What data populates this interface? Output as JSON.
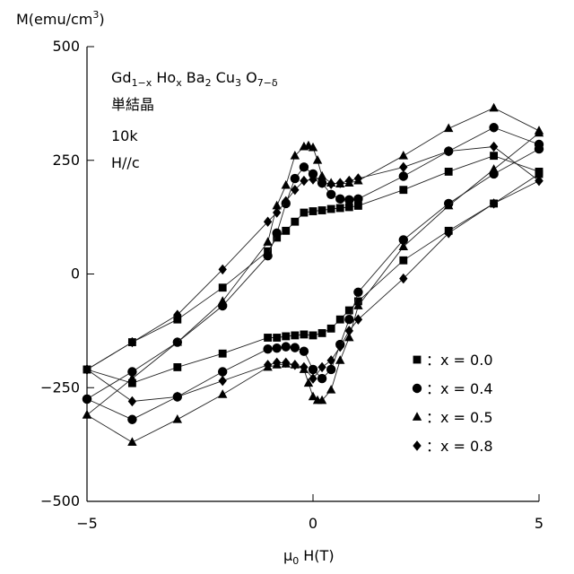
{
  "chart_data": {
    "type": "scatter",
    "ylabel_base": "M(emu/cm",
    "ylabel_sup": "3",
    "ylabel_end": ")",
    "xlabel_main": "μ",
    "xlabel_sub": "0",
    "xlabel_rest": " H(T)",
    "xlim": [
      -5,
      5
    ],
    "ylim": [
      -500,
      500
    ],
    "x_ticks": [
      -5,
      0,
      5
    ],
    "x_tick_labels": [
      "−5",
      "0",
      "5"
    ],
    "y_ticks": [
      -500,
      -250,
      0,
      250,
      500
    ],
    "y_tick_labels": [
      "−500",
      "−250",
      "0",
      "250",
      "500"
    ],
    "annotation": {
      "formula_parts": [
        {
          "t": "Gd",
          "sub": false
        },
        {
          "t": "1−x",
          "sub": true
        },
        {
          "t": " Ho",
          "sub": false
        },
        {
          "t": "x",
          "sub": true
        },
        {
          "t": " Ba",
          "sub": false
        },
        {
          "t": "2",
          "sub": true
        },
        {
          "t": " Cu",
          "sub": false
        },
        {
          "t": "3",
          "sub": true
        },
        {
          "t": " O",
          "sub": false
        },
        {
          "t": "7−δ",
          "sub": true
        }
      ],
      "line2": "単結晶",
      "line3": "10k",
      "line4": "H//c"
    },
    "legend_position": "bottom-right",
    "series": [
      {
        "name": "：x = 0.0",
        "marker": "square",
        "lower": {
          "x": [
            -5,
            -4,
            -3,
            -2,
            -1,
            -0.8,
            -0.6,
            -0.4,
            -0.2,
            0,
            0.2,
            0.4,
            0.6,
            0.8,
            1,
            2,
            3,
            4,
            5
          ],
          "y": [
            -210,
            -240,
            -205,
            -175,
            -140,
            -140,
            -137,
            -135,
            -133,
            -135,
            -130,
            -120,
            -100,
            -80,
            -60,
            30,
            95,
            155,
            220
          ]
        },
        "upper": {
          "x": [
            5,
            4,
            3,
            2,
            1,
            0.8,
            0.6,
            0.4,
            0.2,
            0,
            -0.2,
            -0.4,
            -0.6,
            -0.8,
            -1,
            -2,
            -3,
            -4,
            -5
          ],
          "y": [
            225,
            260,
            225,
            185,
            150,
            147,
            145,
            143,
            140,
            138,
            135,
            115,
            95,
            80,
            50,
            -30,
            -100,
            -150,
            -210
          ]
        }
      },
      {
        "name": "：x = 0.4",
        "marker": "circle",
        "lower": {
          "x": [
            -5,
            -4,
            -3,
            -2,
            -1,
            -0.8,
            -0.6,
            -0.4,
            -0.2,
            0,
            0.2,
            0.4,
            0.6,
            0.8,
            1,
            2,
            3,
            4,
            5
          ],
          "y": [
            -275,
            -320,
            -270,
            -215,
            -165,
            -163,
            -160,
            -162,
            -170,
            -210,
            -230,
            -210,
            -155,
            -100,
            -40,
            75,
            155,
            220,
            275
          ]
        },
        "upper": {
          "x": [
            5,
            4,
            3,
            2,
            1,
            0.8,
            0.6,
            0.4,
            0.2,
            0,
            -0.2,
            -0.4,
            -0.6,
            -0.8,
            -1,
            -2,
            -3,
            -4,
            -5
          ],
          "y": [
            285,
            322,
            270,
            215,
            165,
            163,
            165,
            175,
            200,
            220,
            235,
            210,
            155,
            90,
            40,
            -70,
            -150,
            -215,
            -275
          ]
        }
      },
      {
        "name": "：x = 0.5",
        "marker": "triangle",
        "lower": {
          "x": [
            -5,
            -4,
            -3,
            -2,
            -1,
            -0.8,
            -0.6,
            -0.4,
            -0.2,
            -0.1,
            0,
            0.1,
            0.2,
            0.4,
            0.6,
            0.8,
            1,
            2,
            3,
            4,
            5
          ],
          "y": [
            -310,
            -370,
            -320,
            -265,
            -205,
            -200,
            -198,
            -200,
            -210,
            -240,
            -270,
            -278,
            -278,
            -255,
            -190,
            -140,
            -70,
            60,
            150,
            230,
            310
          ]
        },
        "upper": {
          "x": [
            5,
            4,
            3,
            2,
            1,
            0.8,
            0.6,
            0.4,
            0.2,
            0.1,
            0,
            -0.1,
            -0.2,
            -0.4,
            -0.6,
            -0.8,
            -1,
            -2,
            -3,
            -4,
            -5
          ],
          "y": [
            315,
            365,
            320,
            260,
            205,
            200,
            198,
            200,
            215,
            250,
            278,
            282,
            280,
            260,
            195,
            150,
            70,
            -60,
            -150,
            -230,
            -310
          ]
        }
      },
      {
        "name": "：x = 0.8",
        "marker": "diamond",
        "lower": {
          "x": [
            -5,
            -4,
            -3,
            -2,
            -1,
            -0.8,
            -0.6,
            -0.4,
            -0.2,
            0,
            0.2,
            0.4,
            0.6,
            0.8,
            1,
            2,
            3,
            4,
            5
          ],
          "y": [
            -210,
            -280,
            -270,
            -235,
            -200,
            -195,
            -195,
            -200,
            -205,
            -230,
            -205,
            -190,
            -160,
            -125,
            -100,
            -10,
            90,
            155,
            205
          ]
        },
        "upper": {
          "x": [
            5,
            4,
            3,
            2,
            1,
            0.8,
            0.6,
            0.4,
            0.2,
            0,
            -0.2,
            -0.4,
            -0.6,
            -0.8,
            -1,
            -2,
            -3,
            -4,
            -5
          ],
          "y": [
            205,
            280,
            270,
            235,
            210,
            205,
            200,
            198,
            200,
            208,
            205,
            185,
            160,
            135,
            115,
            10,
            -90,
            -150,
            -210
          ]
        }
      }
    ]
  }
}
